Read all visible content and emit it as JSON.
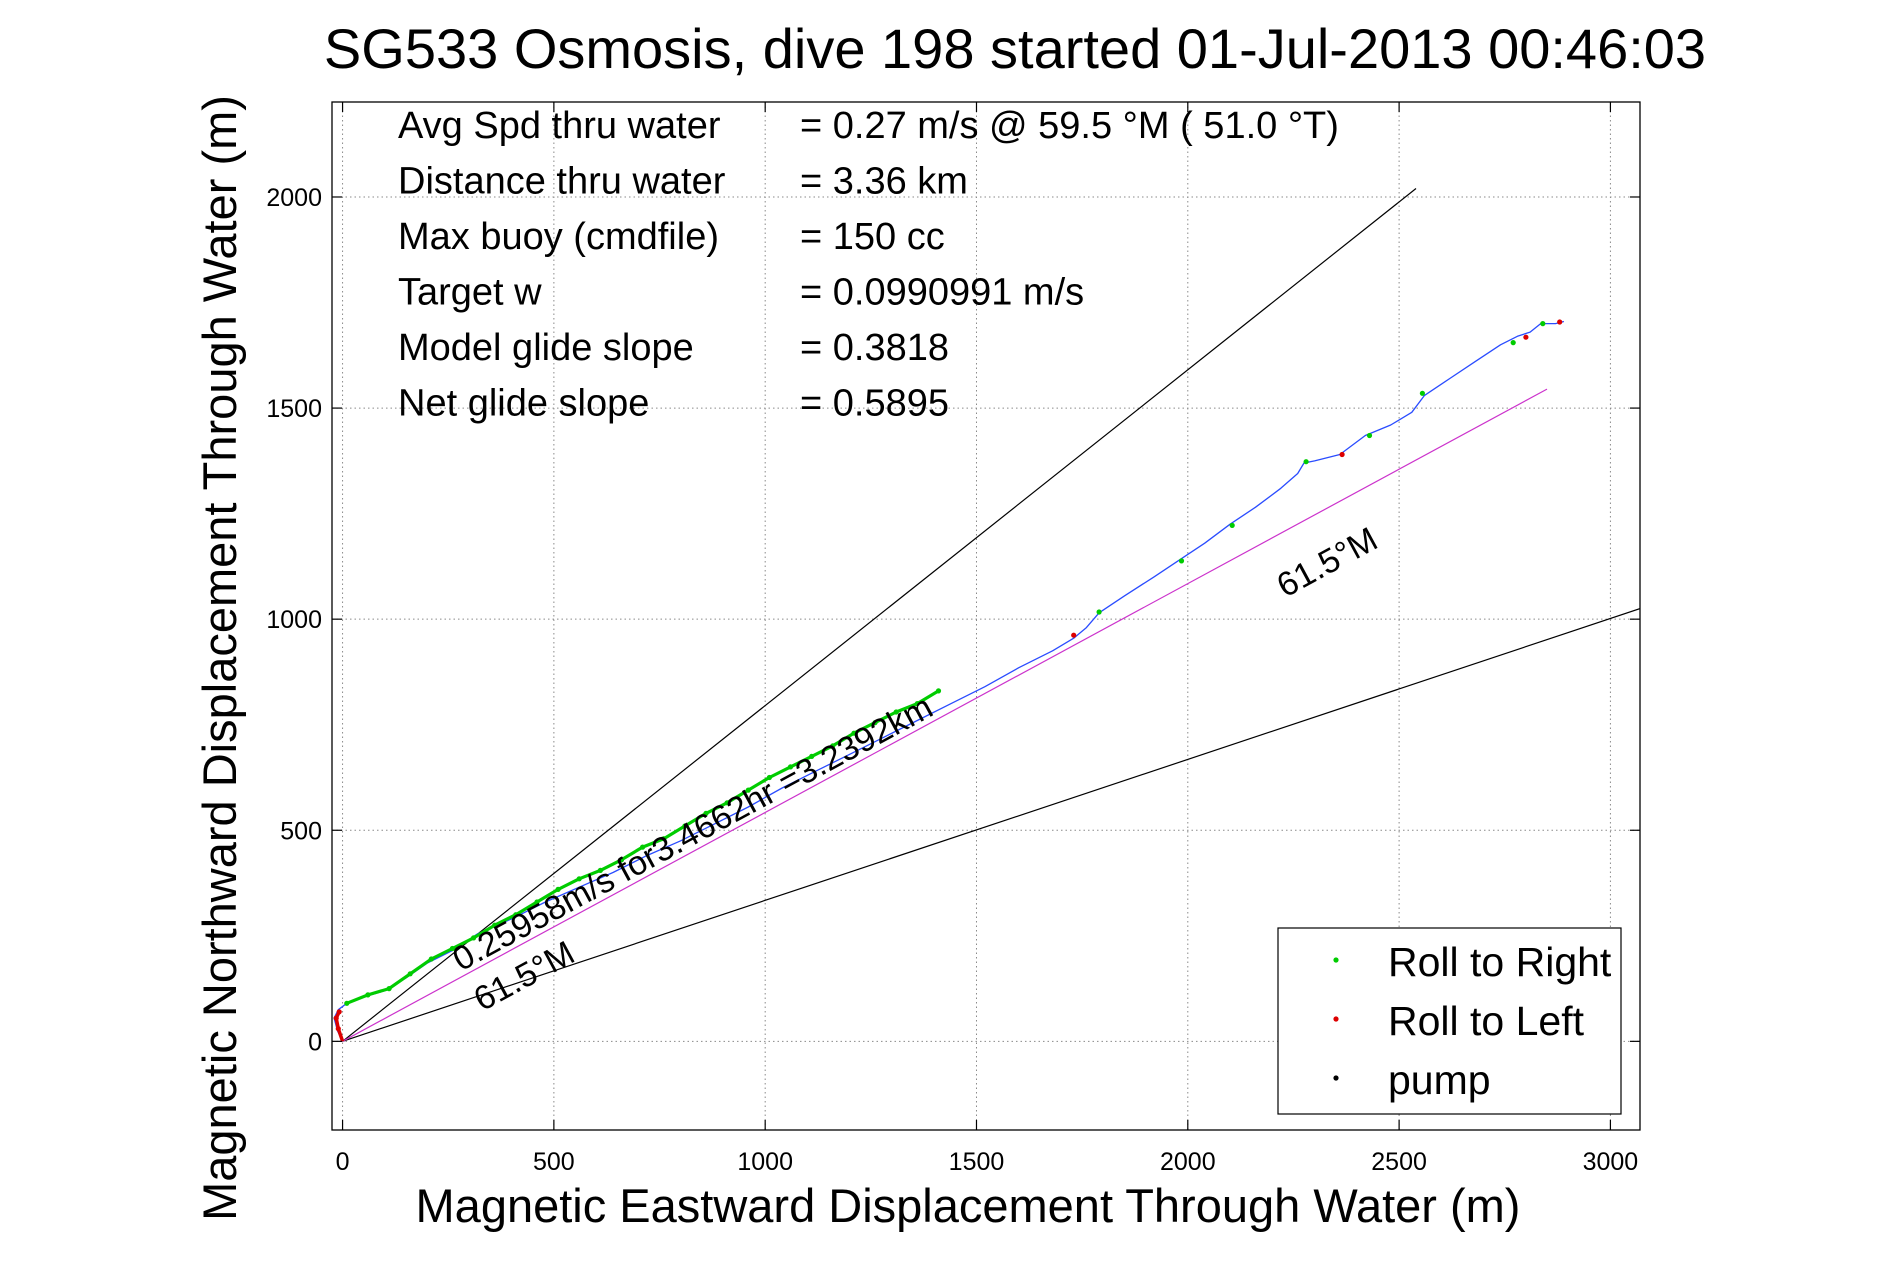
{
  "chart_data": {
    "type": "line",
    "title": "SG533 Osmosis, dive 198 started 01-Jul-2013 00:46:03",
    "xlabel": "Magnetic Eastward Displacement Through Water (m)",
    "ylabel": "Magnetic Northward Displacement Through Water (m)",
    "xlim": [
      -25,
      3070
    ],
    "ylim": [
      -210,
      2225
    ],
    "xticks": [
      0,
      500,
      1000,
      1500,
      2000,
      2500,
      3000
    ],
    "yticks": [
      0,
      500,
      1000,
      1500,
      2000
    ],
    "grid": true,
    "legend_placement": "bottom-right",
    "stats": [
      {
        "label": "Avg Spd thru water",
        "value": "=  0.27 m/s @  59.5 °M ( 51.0 °T)"
      },
      {
        "label": "Distance thru water",
        "value": "=  3.36 km"
      },
      {
        "label": "Max buoy (cmdfile)",
        "value": "= 150 cc"
      },
      {
        "label": "Target w",
        "value": "= 0.0990991 m/s"
      },
      {
        "label": "Model glide slope",
        "value": "= 0.3818"
      },
      {
        "label": "Net glide slope",
        "value": "= 0.5895"
      }
    ],
    "annotations": [
      {
        "text": "0.25958m/s for3.4662hr =3.2392km",
        "x": 280,
        "y": 165,
        "angle_deg": 28.5
      },
      {
        "text": "61.5°M",
        "x": 330,
        "y": 70,
        "angle_deg": 28.5
      },
      {
        "text": "61.5°M",
        "x": 2230,
        "y": 1050,
        "angle_deg": 28.5
      }
    ],
    "reference_lines": [
      {
        "name": "upper-bound",
        "x": [
          0,
          2540
        ],
        "y": [
          0,
          2020
        ],
        "color": "#000000"
      },
      {
        "name": "lower-bound",
        "x": [
          0,
          3070
        ],
        "y": [
          0,
          1025
        ],
        "color": "#000000"
      },
      {
        "name": "net-course",
        "x": [
          0,
          2850
        ],
        "y": [
          0,
          1545
        ],
        "color": "#cc33cc"
      }
    ],
    "series": [
      {
        "color": "#2a4cff",
        "x": [
          0,
          -12,
          -20,
          -10,
          10,
          50,
          100,
          150,
          200,
          260,
          320,
          400,
          480,
          560,
          640,
          720,
          800,
          880,
          960,
          1040,
          1120,
          1200,
          1280,
          1360,
          1440,
          1520,
          1600,
          1680,
          1730,
          1760,
          1790,
          1850,
          1920,
          1980,
          2040,
          2100,
          2160,
          2220,
          2260,
          2275,
          2300,
          2360,
          2420,
          2480,
          2530,
          2560,
          2620,
          2680,
          2740,
          2780,
          2810,
          2835,
          2850,
          2870,
          2890
        ],
        "y": [
          0,
          25,
          55,
          75,
          90,
          105,
          120,
          150,
          185,
          215,
          255,
          290,
          330,
          365,
          400,
          440,
          475,
          515,
          555,
          600,
          640,
          680,
          720,
          760,
          800,
          840,
          885,
          925,
          955,
          980,
          1015,
          1055,
          1100,
          1140,
          1180,
          1225,
          1265,
          1310,
          1345,
          1370,
          1375,
          1390,
          1435,
          1460,
          1490,
          1530,
          1570,
          1610,
          1650,
          1670,
          1680,
          1700,
          1700,
          1700,
          1705
        ]
      },
      {
        "name": "Roll to Right",
        "color": "#00cc00",
        "x": [
          10,
          60,
          110,
          160,
          210,
          260,
          310,
          360,
          410,
          460,
          510,
          560,
          610,
          660,
          710,
          760,
          810,
          860,
          910,
          960,
          1010,
          1060,
          1110,
          1160,
          1210,
          1260,
          1310,
          1360,
          1410,
          1790,
          1985,
          2105,
          2280,
          2430,
          2555,
          2770,
          2840
        ],
        "y": [
          90,
          110,
          125,
          160,
          195,
          220,
          245,
          275,
          300,
          330,
          360,
          385,
          405,
          430,
          460,
          480,
          510,
          540,
          565,
          595,
          625,
          650,
          675,
          700,
          730,
          755,
          780,
          800,
          830,
          1017,
          1138,
          1222,
          1373,
          1435,
          1535,
          1655,
          1700
        ]
      },
      {
        "name": "Roll to Left",
        "color": "#dd0000",
        "x": [
          -10,
          -15,
          -8,
          1730,
          2365,
          2800,
          2880
        ],
        "y": [
          30,
          55,
          70,
          962,
          1390,
          1668,
          1704
        ]
      },
      {
        "name": "pump",
        "color": "#000000",
        "x": [],
        "y": []
      }
    ]
  }
}
